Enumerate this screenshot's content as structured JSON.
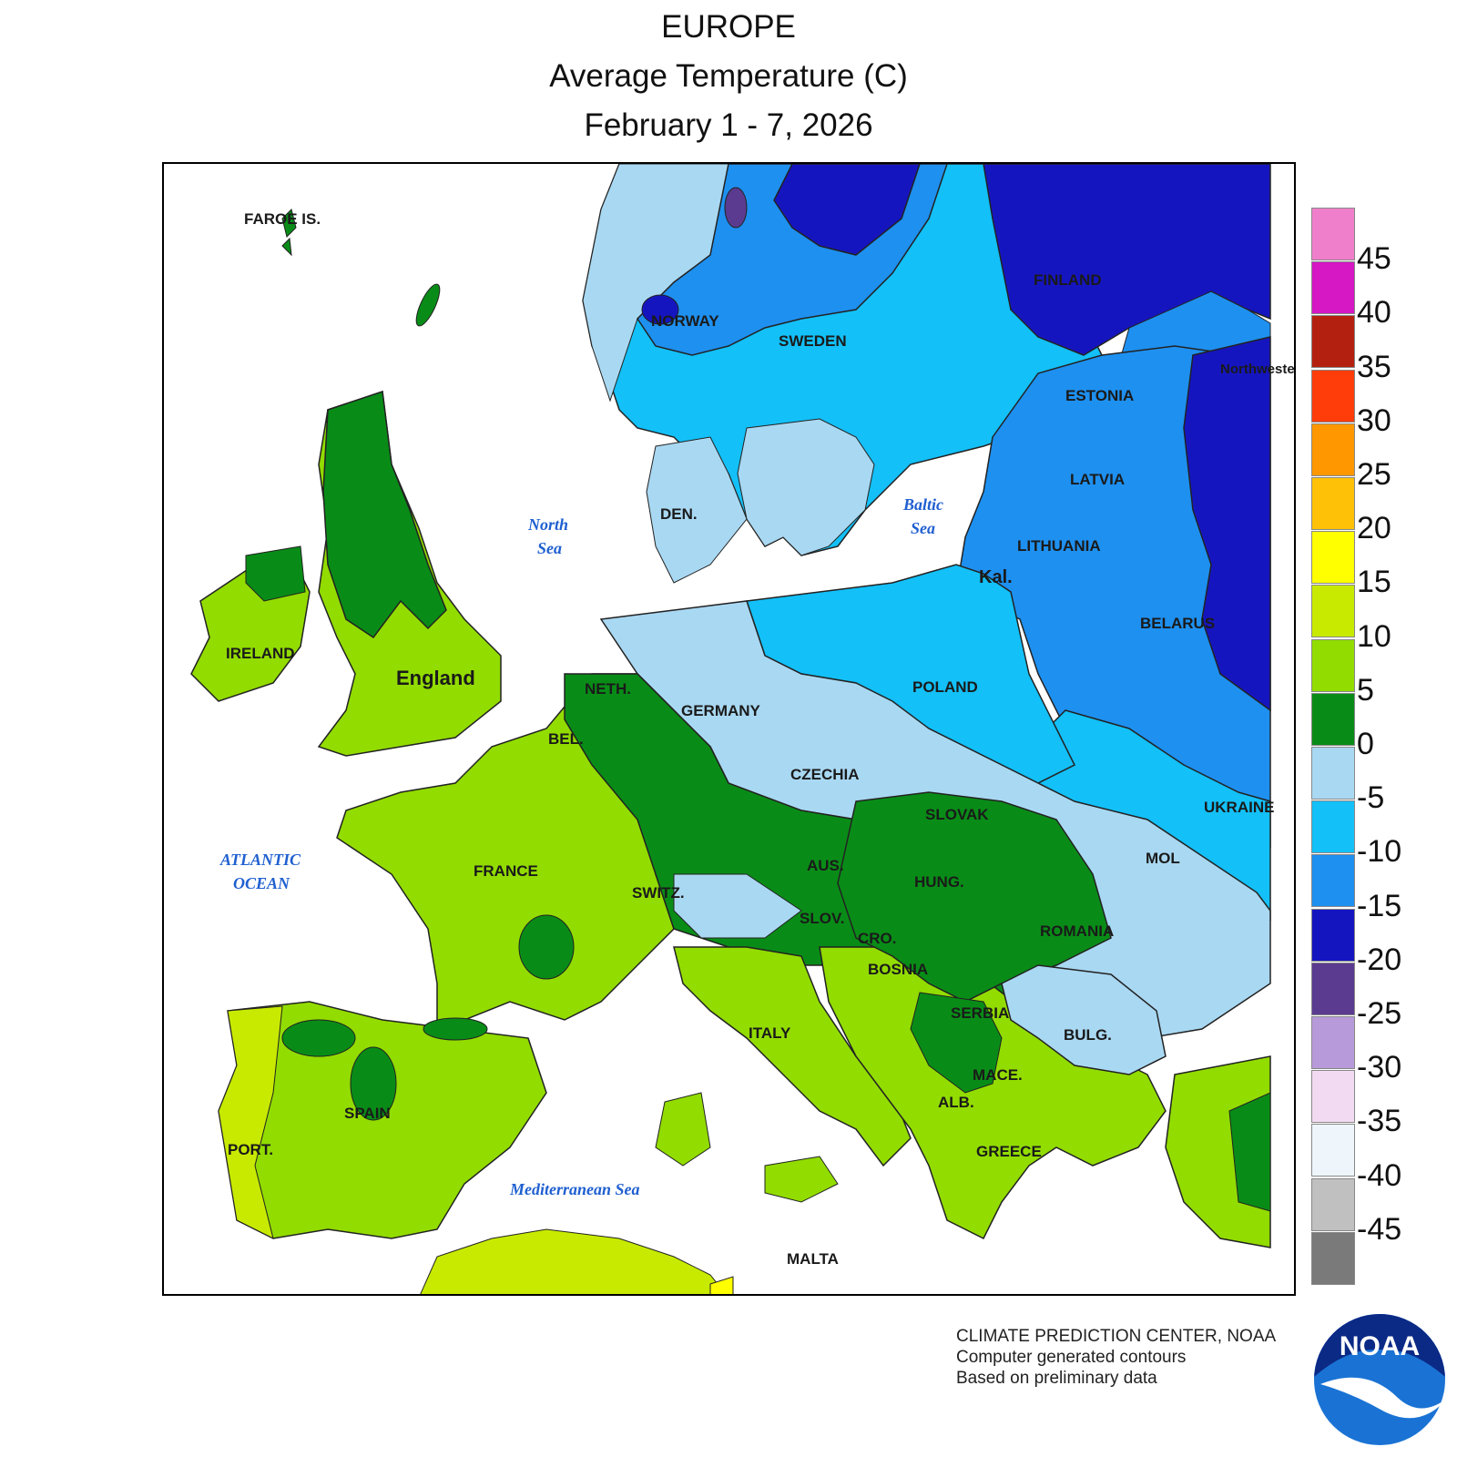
{
  "title": {
    "line1": "EUROPE",
    "line2": "Average Temperature (C)",
    "line3": "February 1 - 7, 2026"
  },
  "country_labels": [
    "FAROE IS.",
    "NORWAY",
    "SWEDEN",
    "FINLAND",
    "ESTONIA",
    "LATVIA",
    "LITHUANIA",
    "Kal.",
    "BELARUS",
    "DEN.",
    "IRELAND",
    "England",
    "NETH.",
    "BEL.",
    "GERMANY",
    "POLAND",
    "CZECHIA",
    "SLOVAK",
    "UKRAINE",
    "MOL",
    "AUS.",
    "HUNG.",
    "SWITZ.",
    "SLOV.",
    "CRO.",
    "BOSNIA",
    "ROMANIA",
    "SERBIA",
    "BULG.",
    "MACE.",
    "ALB.",
    "GREECE",
    "ITALY",
    "FRANCE",
    "SPAIN",
    "PORT.",
    "MALTA",
    "Northwestern District"
  ],
  "sea_labels": {
    "north_sea": [
      "North",
      "Sea"
    ],
    "baltic_sea": [
      "Baltic",
      "Sea"
    ],
    "atlantic": [
      "ATLANTIC",
      "OCEAN"
    ],
    "med": "Mediterranean Sea"
  },
  "legend": {
    "ticks": [
      "45",
      "40",
      "35",
      "30",
      "25",
      "20",
      "15",
      "10",
      "5",
      "0",
      "-5",
      "-10",
      "-15",
      "-20",
      "-25",
      "-30",
      "-35",
      "-40",
      "-45"
    ],
    "colors": [
      "#ef7fcb",
      "#d517c4",
      "#b4200f",
      "#ff3d0a",
      "#ff9800",
      "#ffc107",
      "#ffff00",
      "#c8ea00",
      "#92dc00",
      "#098c17",
      "#a9d8f2",
      "#13c0f8",
      "#1e90f0",
      "#1515c0",
      "#5a3b8f",
      "#b79ad9",
      "#f2dbf2",
      "#eef6fb",
      "#c0c0c0",
      "#7a7a7a"
    ]
  },
  "credits": {
    "line1": "CLIMATE PREDICTION CENTER, NOAA",
    "line2": "Computer generated contours",
    "line3": "Based on preliminary data"
  },
  "logo_text": "NOAA"
}
